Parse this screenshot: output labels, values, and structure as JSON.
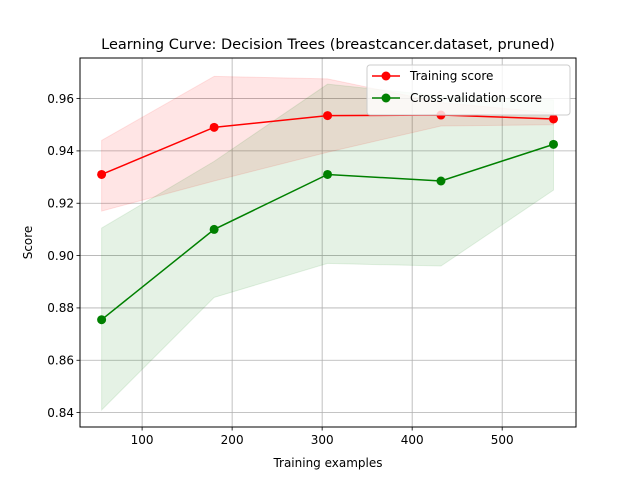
{
  "chart_data": {
    "type": "line",
    "title": "Learning Curve: Decision Trees (breastcancer.dataset, pruned)",
    "xlabel": "Training examples",
    "ylabel": "Score",
    "xlim": [
      31,
      582
    ],
    "ylim": [
      0.8345,
      0.9755
    ],
    "xticks": [
      100,
      200,
      300,
      400,
      500
    ],
    "yticks": [
      0.84,
      0.86,
      0.88,
      0.9,
      0.92,
      0.94,
      0.96
    ],
    "ytick_labels": [
      "0.84",
      "0.86",
      "0.88",
      "0.90",
      "0.92",
      "0.94",
      "0.96"
    ],
    "grid": true,
    "legend_position": "top-right",
    "x": [
      55,
      180,
      306,
      432,
      557
    ],
    "series": [
      {
        "name": "Training score",
        "color": "#ff0000",
        "band_color": "#ff0000",
        "values": [
          0.931,
          0.949,
          0.9535,
          0.9537,
          0.9522
        ],
        "band_upper": [
          0.944,
          0.9685,
          0.9675,
          0.9585,
          0.9545
        ],
        "band_lower": [
          0.917,
          0.9285,
          0.9395,
          0.9495,
          0.95
        ]
      },
      {
        "name": "Cross-validation score",
        "color": "#008000",
        "band_color": "#008000",
        "values": [
          0.8755,
          0.91,
          0.931,
          0.9285,
          0.9425
        ],
        "band_upper": [
          0.9105,
          0.936,
          0.9655,
          0.961,
          0.9595
        ],
        "band_lower": [
          0.841,
          0.884,
          0.897,
          0.896,
          0.925
        ]
      }
    ]
  }
}
